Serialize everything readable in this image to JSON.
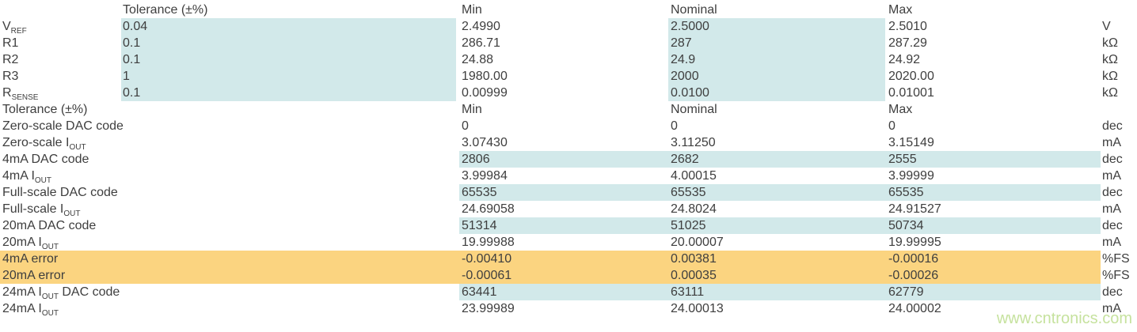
{
  "colors": {
    "text": "#3e3e3e",
    "highlight_blue": "#d2e9ea",
    "highlight_orange": "#fbd480",
    "watermark": "#c6e29e"
  },
  "watermark": "www.cntronics.com",
  "table": {
    "sections": [
      {
        "header": {
          "label": "",
          "tolerance": "Tolerance (±%)",
          "min": "Min",
          "nominal": "Nominal",
          "max": "Max",
          "unit": ""
        },
        "rows": [
          {
            "label": [
              {
                "t": "V"
              },
              {
                "s": "REF"
              }
            ],
            "tolerance": "0.04",
            "min": "2.4990",
            "nominal": "2.5000",
            "max": "2.5010",
            "unit": "V",
            "highlight": "tol-nom"
          },
          {
            "label": [
              {
                "t": "R1"
              }
            ],
            "tolerance": "0.1",
            "min": "286.71",
            "nominal": "287",
            "max": "287.29",
            "unit": "kΩ",
            "highlight": "tol-nom"
          },
          {
            "label": [
              {
                "t": "R2"
              }
            ],
            "tolerance": "0.1",
            "min": "24.88",
            "nominal": "24.9",
            "max": "24.92",
            "unit": "kΩ",
            "highlight": "tol-nom"
          },
          {
            "label": [
              {
                "t": "R3"
              }
            ],
            "tolerance": "1",
            "min": "1980.00",
            "nominal": "2000",
            "max": "2020.00",
            "unit": "kΩ",
            "highlight": "tol-nom"
          },
          {
            "label": [
              {
                "t": "R"
              },
              {
                "s": "SENSE"
              }
            ],
            "tolerance": "0.1",
            "min": "0.00999",
            "nominal": "0.0100",
            "max": "0.01001",
            "unit": "kΩ",
            "highlight": "tol-nom"
          }
        ]
      },
      {
        "header": {
          "label": "Tolerance (±%)",
          "tolerance": "",
          "min": "Min",
          "nominal": "Nominal",
          "max": "Max",
          "unit": ""
        },
        "rows": [
          {
            "label": [
              {
                "t": "Zero-scale DAC code"
              }
            ],
            "tolerance": "",
            "min": "0",
            "nominal": "0",
            "max": "0",
            "unit": "dec",
            "highlight": "none"
          },
          {
            "label": [
              {
                "t": "Zero-scale I"
              },
              {
                "s": "OUT"
              }
            ],
            "tolerance": "",
            "min": "3.07430",
            "nominal": "3.11250",
            "max": "3.15149",
            "unit": "mA",
            "highlight": "none"
          },
          {
            "label": [
              {
                "t": "4mA DAC code"
              }
            ],
            "tolerance": "",
            "min": "2806",
            "nominal": "2682",
            "max": "2555",
            "unit": "dec",
            "highlight": "blue"
          },
          {
            "label": [
              {
                "t": "4mA I"
              },
              {
                "s": "OUT"
              }
            ],
            "tolerance": "",
            "min": "3.99984",
            "nominal": "4.00015",
            "max": "3.99999",
            "unit": "mA",
            "highlight": "none"
          },
          {
            "label": [
              {
                "t": "Full-scale DAC code"
              }
            ],
            "tolerance": "",
            "min": "65535",
            "nominal": "65535",
            "max": "65535",
            "unit": "dec",
            "highlight": "blue"
          },
          {
            "label": [
              {
                "t": "Full-scale I"
              },
              {
                "s": "OUT"
              }
            ],
            "tolerance": "",
            "min": "24.69058",
            "nominal": "24.8024",
            "max": "24.91527",
            "unit": "mA",
            "highlight": "none"
          },
          {
            "label": [
              {
                "t": "20mA DAC code"
              }
            ],
            "tolerance": "",
            "min": "51314",
            "nominal": "51025",
            "max": "50734",
            "unit": "dec",
            "highlight": "blue"
          },
          {
            "label": [
              {
                "t": "20mA I"
              },
              {
                "s": "OUT"
              }
            ],
            "tolerance": "",
            "min": "19.99988",
            "nominal": "20.00007",
            "max": "19.99995",
            "unit": "mA",
            "highlight": "none"
          },
          {
            "label": [
              {
                "t": "4mA error"
              }
            ],
            "tolerance": "",
            "min": "-0.00410",
            "nominal": "0.00381",
            "max": "-0.00016",
            "unit": "%FS",
            "highlight": "orange"
          },
          {
            "label": [
              {
                "t": "20mA error"
              }
            ],
            "tolerance": "",
            "min": "-0.00061",
            "nominal": "0.00035",
            "max": "-0.00026",
            "unit": "%FS",
            "highlight": "orange"
          },
          {
            "label": [
              {
                "t": "24mA I"
              },
              {
                "s": "OUT"
              },
              {
                "t": " DAC code"
              }
            ],
            "tolerance": "",
            "min": "63441",
            "nominal": "63111",
            "max": "62779",
            "unit": "dec",
            "highlight": "blue"
          },
          {
            "label": [
              {
                "t": "24mA I"
              },
              {
                "s": "OUT"
              }
            ],
            "tolerance": "",
            "min": "23.99989",
            "nominal": "24.00013",
            "max": "24.00002",
            "unit": "mA",
            "highlight": "none"
          }
        ]
      }
    ]
  }
}
